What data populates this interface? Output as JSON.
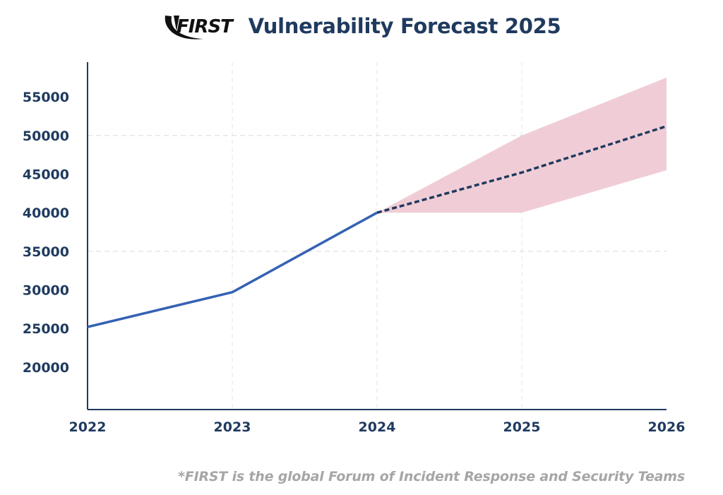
{
  "header": {
    "logo_text": "FIRST",
    "title": "Vulnerability Forecast 2025"
  },
  "chart_data": {
    "type": "line",
    "x": [
      2022,
      2023,
      2024,
      2025,
      2026
    ],
    "x_tick_labels": [
      "2022",
      "2023",
      "2024",
      "2025",
      "2026"
    ],
    "y_tick_values": [
      20000,
      25000,
      30000,
      35000,
      40000,
      45000,
      50000,
      55000
    ],
    "y_tick_labels": [
      "20000",
      "25000",
      "30000",
      "35000",
      "40000",
      "45000",
      "50000",
      "55000"
    ],
    "ylim": [
      14500,
      59500
    ],
    "xlim": [
      2022,
      2026
    ],
    "actual": {
      "x": [
        2022,
        2023,
        2024
      ],
      "values": [
        25200,
        29700,
        40000
      ],
      "color": "#3461b3",
      "style": "solid"
    },
    "forecast": {
      "x": [
        2024,
        2025,
        2026
      ],
      "values": [
        40000,
        45200,
        51200
      ],
      "color": "#1f3a5f",
      "style": "dashed"
    },
    "confidence_band": {
      "x": [
        2024,
        2025,
        2026
      ],
      "upper": [
        40000,
        50000,
        57500
      ],
      "lower": [
        40000,
        40000,
        45500
      ],
      "color": "#f0cdd6"
    },
    "gridlines_y": [
      35000,
      50000
    ],
    "gridlines_x": [
      2023,
      2024,
      2025
    ],
    "title": "Vulnerability Forecast 2025",
    "xlabel": "",
    "ylabel": ""
  },
  "footnote": "*FIRST is the global Forum of Incident Response and Security Teams"
}
